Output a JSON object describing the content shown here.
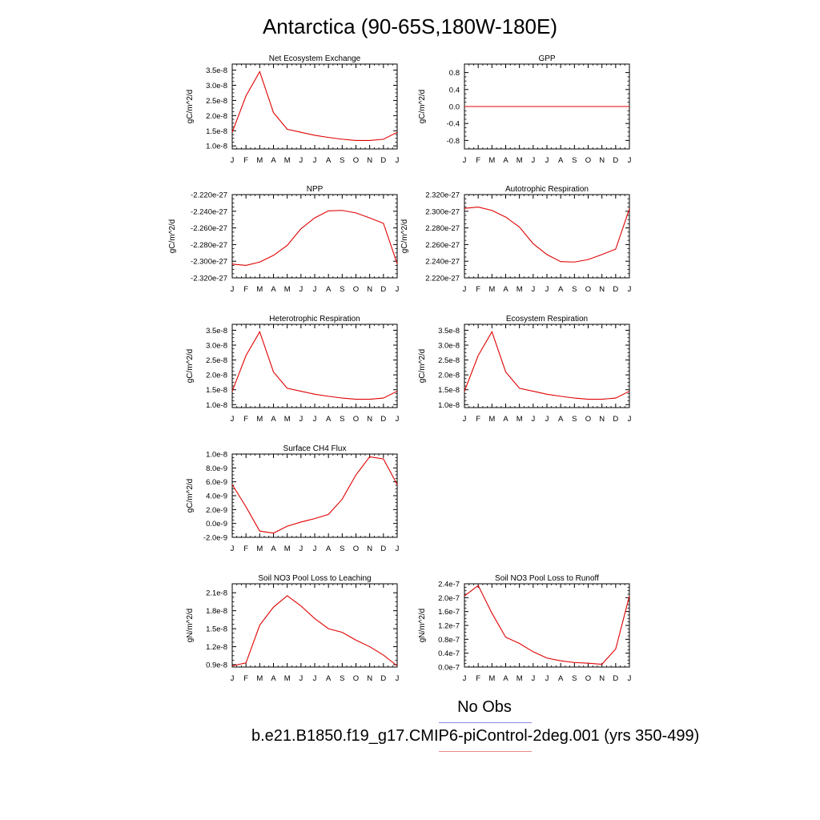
{
  "title": "Antarctica (90-65S,180W-180E)",
  "months": [
    "J",
    "F",
    "M",
    "A",
    "M",
    "J",
    "J",
    "A",
    "S",
    "O",
    "N",
    "D",
    "J"
  ],
  "legend": {
    "obs_label": "No Obs",
    "obs_color": "#8888ee",
    "model_label": "b.e21.B1850.f19_g17.CMIP6-piControl-2deg.001 (yrs 350-499)",
    "model_color": "#ee8888"
  },
  "line_color": "#e00000",
  "chart_data": [
    {
      "type": "line",
      "title": "Net Ecosystem Exchange",
      "ylabel": "gC/m^2/d",
      "ylim": [
        9e-09,
        3.7e-08
      ],
      "yticks": [
        1e-08,
        1.5e-08,
        2e-08,
        2.5e-08,
        3e-08,
        3.5e-08
      ],
      "yticklabels": [
        "1.0e-8",
        "1.5e-8",
        "2.0e-8",
        "2.5e-8",
        "3.0e-8",
        "3.5e-8"
      ],
      "x": [
        0,
        1,
        2,
        3,
        4,
        5,
        6,
        7,
        8,
        9,
        10,
        11,
        12
      ],
      "values": [
        1.45e-08,
        2.65e-08,
        3.45e-08,
        2.1e-08,
        1.55e-08,
        1.45e-08,
        1.35e-08,
        1.28e-08,
        1.22e-08,
        1.18e-08,
        1.18e-08,
        1.22e-08,
        1.45e-08
      ]
    },
    {
      "type": "line",
      "title": "GPP",
      "ylabel": "gC/m^2/d",
      "ylim": [
        -1.0,
        1.0
      ],
      "yticks": [
        -0.8,
        -0.4,
        0.0,
        0.4,
        0.8
      ],
      "yticklabels": [
        "-0.8",
        "-0.4",
        "0.0",
        "0.4",
        "0.8"
      ],
      "x": [
        0,
        1,
        2,
        3,
        4,
        5,
        6,
        7,
        8,
        9,
        10,
        11,
        12
      ],
      "values": [
        0,
        0,
        0,
        0,
        0,
        0,
        0,
        0,
        0,
        0,
        0,
        0,
        0
      ]
    },
    {
      "type": "line",
      "title": "NPP",
      "ylabel": "gC/m^2/d",
      "ylim": [
        -2.32e-27,
        -2.22e-27
      ],
      "yticks": [
        -2.32e-27,
        -2.3e-27,
        -2.28e-27,
        -2.26e-27,
        -2.24e-27,
        -2.22e-27
      ],
      "yticklabels": [
        "-2.320e-27",
        "-2.300e-27",
        "-2.280e-27",
        "-2.260e-27",
        "-2.240e-27",
        "-2.220e-27"
      ],
      "x": [
        0,
        1,
        2,
        3,
        4,
        5,
        6,
        7,
        8,
        9,
        10,
        11,
        12
      ],
      "values": [
        -2.3035e-27,
        -2.305e-27,
        -2.301e-27,
        -2.293e-27,
        -2.281e-27,
        -2.261e-27,
        -2.248e-27,
        -2.2395e-27,
        -2.239e-27,
        -2.242e-27,
        -2.248e-27,
        -2.2545e-27,
        -2.303e-27
      ]
    },
    {
      "type": "line",
      "title": "Autotrophic Respiration",
      "ylabel": "gC/m^2/d",
      "ylim": [
        2.22e-27,
        2.32e-27
      ],
      "yticks": [
        2.22e-27,
        2.24e-27,
        2.26e-27,
        2.28e-27,
        2.3e-27,
        2.32e-27
      ],
      "yticklabels": [
        "2.220e-27",
        "2.240e-27",
        "2.260e-27",
        "2.280e-27",
        "2.300e-27",
        "2.320e-27"
      ],
      "x": [
        0,
        1,
        2,
        3,
        4,
        5,
        6,
        7,
        8,
        9,
        10,
        11,
        12
      ],
      "values": [
        2.3035e-27,
        2.305e-27,
        2.301e-27,
        2.293e-27,
        2.281e-27,
        2.261e-27,
        2.248e-27,
        2.2395e-27,
        2.239e-27,
        2.242e-27,
        2.248e-27,
        2.2545e-27,
        2.303e-27
      ]
    },
    {
      "type": "line",
      "title": "Heterotrophic Respiration",
      "ylabel": "gC/m^2/d",
      "ylim": [
        9e-09,
        3.7e-08
      ],
      "yticks": [
        1e-08,
        1.5e-08,
        2e-08,
        2.5e-08,
        3e-08,
        3.5e-08
      ],
      "yticklabels": [
        "1.0e-8",
        "1.5e-8",
        "2.0e-8",
        "2.5e-8",
        "3.0e-8",
        "3.5e-8"
      ],
      "x": [
        0,
        1,
        2,
        3,
        4,
        5,
        6,
        7,
        8,
        9,
        10,
        11,
        12
      ],
      "values": [
        1.45e-08,
        2.65e-08,
        3.45e-08,
        2.1e-08,
        1.55e-08,
        1.45e-08,
        1.35e-08,
        1.28e-08,
        1.22e-08,
        1.18e-08,
        1.18e-08,
        1.22e-08,
        1.45e-08
      ]
    },
    {
      "type": "line",
      "title": "Ecosystem Respiration",
      "ylabel": "gC/m^2/d",
      "ylim": [
        9e-09,
        3.7e-08
      ],
      "yticks": [
        1e-08,
        1.5e-08,
        2e-08,
        2.5e-08,
        3e-08,
        3.5e-08
      ],
      "yticklabels": [
        "1.0e-8",
        "1.5e-8",
        "2.0e-8",
        "2.5e-8",
        "3.0e-8",
        "3.5e-8"
      ],
      "x": [
        0,
        1,
        2,
        3,
        4,
        5,
        6,
        7,
        8,
        9,
        10,
        11,
        12
      ],
      "values": [
        1.45e-08,
        2.65e-08,
        3.45e-08,
        2.1e-08,
        1.55e-08,
        1.45e-08,
        1.35e-08,
        1.28e-08,
        1.22e-08,
        1.18e-08,
        1.18e-08,
        1.22e-08,
        1.45e-08
      ]
    },
    {
      "type": "line",
      "title": "Surface CH4 Flux",
      "ylabel": "gC/m^2/d",
      "ylim": [
        -2e-09,
        1e-08
      ],
      "yticks": [
        -2e-09,
        0.0,
        2e-09,
        4e-09,
        6e-09,
        8e-09,
        1e-08
      ],
      "yticklabels": [
        "-2.0e-9",
        "0.0e-9",
        "2.0e-9",
        "4.0e-9",
        "6.0e-9",
        "8.0e-9",
        "1.0e-8"
      ],
      "x": [
        0,
        1,
        2,
        3,
        4,
        5,
        6,
        7,
        8,
        9,
        10,
        11,
        12
      ],
      "values": [
        5.6e-09,
        2.4e-09,
        -1.1e-09,
        -1.4e-09,
        -4e-10,
        2e-10,
        7e-10,
        1.3e-09,
        3.5e-09,
        7e-09,
        9.6e-09,
        9.3e-09,
        5.6e-09
      ]
    },
    {
      "type": "line",
      "title": "Soil NO3 Pool Loss to Leaching",
      "ylabel": "gN/m^2/d",
      "ylim": [
        8.6e-09,
        2.25e-08
      ],
      "yticks": [
        9e-09,
        1.2e-08,
        1.5e-08,
        1.8e-08,
        2.1e-08
      ],
      "yticklabels": [
        "0.9e-8",
        "1.2e-8",
        "1.5e-8",
        "1.8e-8",
        "2.1e-8"
      ],
      "x": [
        0,
        1,
        2,
        3,
        4,
        5,
        6,
        7,
        8,
        9,
        10,
        11,
        12
      ],
      "values": [
        8.8e-09,
        9.3e-09,
        1.56e-08,
        1.86e-08,
        2.05e-08,
        1.88e-08,
        1.67e-08,
        1.5e-08,
        1.44e-08,
        1.31e-08,
        1.2e-08,
        1.06e-08,
        8.8e-09
      ]
    },
    {
      "type": "line",
      "title": "Soil NO3 Pool Loss to Runoff",
      "ylabel": "gN/m^2/d",
      "ylim": [
        0.0,
        2.4e-07
      ],
      "yticks": [
        0.0,
        4e-08,
        8e-08,
        1.2e-07,
        1.6e-07,
        2e-07,
        2.4e-07
      ],
      "yticklabels": [
        "0.0e-7",
        "0.4e-7",
        "0.8e-7",
        "1.2e-7",
        "1.6e-7",
        "2.0e-7",
        "2.4e-7"
      ],
      "x": [
        0,
        1,
        2,
        3,
        4,
        5,
        6,
        7,
        8,
        9,
        10,
        11,
        12
      ],
      "values": [
        2.05e-07,
        2.35e-07,
        1.55e-07,
        8.6e-08,
        6.8e-08,
        4.4e-08,
        2.6e-08,
        1.8e-08,
        1.3e-08,
        1.1e-08,
        8e-09,
        5.2e-08,
        2.05e-07
      ]
    }
  ]
}
